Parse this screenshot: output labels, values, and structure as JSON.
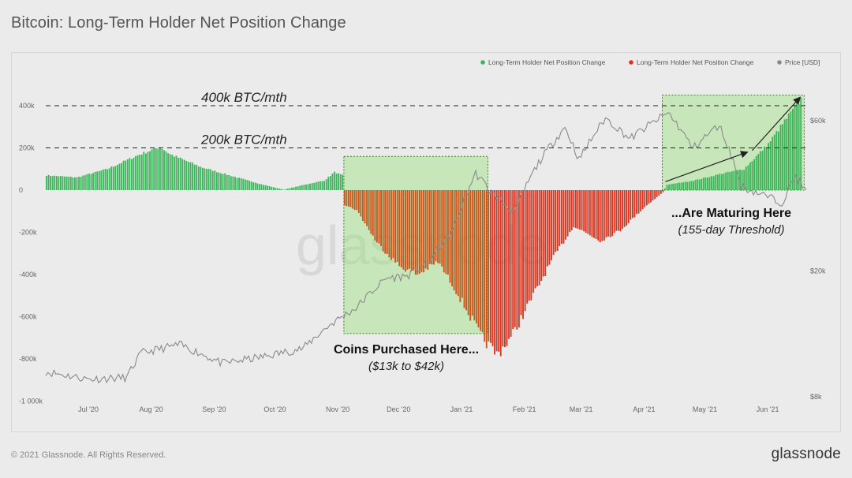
{
  "page": {
    "title": "Bitcoin: Long-Term Holder Net Position Change",
    "copyright": "© 2021 Glassnode. All Rights Reserved.",
    "logo": "glassnode",
    "watermark": "glassnode"
  },
  "chart_data": {
    "type": "bar",
    "title": "Bitcoin: Long-Term Holder Net Position Change",
    "legend": {
      "placement": "top-right",
      "entries": [
        {
          "label": "Long-Term Holder Net Position Change",
          "color": "#3cb45a"
        },
        {
          "label": "Long-Term Holder Net Position Change",
          "color": "#d9341f"
        },
        {
          "label": "Price [USD]",
          "color": "#888888"
        }
      ]
    },
    "colors": {
      "positive": "#3cb45a",
      "negative": "#d9341f",
      "negative_in_box": "#c8561c",
      "price": "#8a8a8a",
      "box_fill": "#9be07f",
      "box_stroke": "#3f7a33"
    },
    "x_axis": {
      "start": "2020-06-10",
      "end": "2021-06-20",
      "tick_labels": [
        "Jul '20",
        "Aug '20",
        "Sep '20",
        "Oct '20",
        "Nov '20",
        "Dec '20",
        "Jan '21",
        "Feb '21",
        "Mar '21",
        "Apr '21",
        "May '21",
        "Jun '21"
      ]
    },
    "y_left": {
      "min": -1000000,
      "max": 450000,
      "tick_values": [
        400000,
        200000,
        0,
        -200000,
        -400000,
        -600000,
        -800000,
        -1000000
      ],
      "tick_labels": [
        "400k",
        "200k",
        "0",
        "-200k",
        "-400k",
        "-600k",
        "-800k",
        "-1 000k"
      ]
    },
    "y_right": {
      "scale": "log",
      "min": 8000,
      "max": 68000,
      "tick_values": [
        60000,
        20000,
        8000
      ],
      "tick_labels": [
        "$60k",
        "$20k",
        "$8k"
      ]
    },
    "thresholds": [
      {
        "value": 400000,
        "label": "400k BTC/mth"
      },
      {
        "value": 200000,
        "label": "200k BTC/mth"
      }
    ],
    "net_position_anchors": [
      [
        "2020-06-10",
        70000
      ],
      [
        "2020-06-25",
        60000
      ],
      [
        "2020-07-10",
        100000
      ],
      [
        "2020-07-25",
        165000
      ],
      [
        "2020-08-05",
        205000
      ],
      [
        "2020-08-10",
        170000
      ],
      [
        "2020-08-25",
        110000
      ],
      [
        "2020-09-10",
        65000
      ],
      [
        "2020-09-25",
        25000
      ],
      [
        "2020-10-05",
        2000
      ],
      [
        "2020-10-15",
        25000
      ],
      [
        "2020-10-25",
        45000
      ],
      [
        "2020-10-30",
        85000
      ],
      [
        "2020-11-03",
        70000
      ],
      [
        "2020-11-04",
        -70000
      ],
      [
        "2020-11-10",
        -95000
      ],
      [
        "2020-11-20",
        -250000
      ],
      [
        "2020-12-01",
        -360000
      ],
      [
        "2020-12-10",
        -400000
      ],
      [
        "2020-12-20",
        -340000
      ],
      [
        "2020-12-28",
        -460000
      ],
      [
        "2021-01-05",
        -600000
      ],
      [
        "2021-01-10",
        -690000
      ],
      [
        "2021-01-18",
        -780000
      ],
      [
        "2021-01-25",
        -700000
      ],
      [
        "2021-02-05",
        -500000
      ],
      [
        "2021-02-15",
        -320000
      ],
      [
        "2021-02-25",
        -170000
      ],
      [
        "2021-03-10",
        -240000
      ],
      [
        "2021-03-20",
        -190000
      ],
      [
        "2021-04-01",
        -80000
      ],
      [
        "2021-04-10",
        -10000
      ],
      [
        "2021-04-12",
        25000
      ],
      [
        "2021-04-25",
        45000
      ],
      [
        "2021-05-10",
        80000
      ],
      [
        "2021-05-20",
        100000
      ],
      [
        "2021-06-01",
        220000
      ],
      [
        "2021-06-10",
        340000
      ],
      [
        "2021-06-17",
        430000
      ]
    ],
    "price_anchors": [
      [
        "2020-06-10",
        9600
      ],
      [
        "2020-07-01",
        9100
      ],
      [
        "2020-07-20",
        9200
      ],
      [
        "2020-07-27",
        11000
      ],
      [
        "2020-08-15",
        11700
      ],
      [
        "2020-09-05",
        10200
      ],
      [
        "2020-09-25",
        10700
      ],
      [
        "2020-10-15",
        11400
      ],
      [
        "2020-10-28",
        13500
      ],
      [
        "2020-11-10",
        15300
      ],
      [
        "2020-11-25",
        19000
      ],
      [
        "2020-12-05",
        19300
      ],
      [
        "2020-12-16",
        21300
      ],
      [
        "2020-12-28",
        27000
      ],
      [
        "2021-01-08",
        40800
      ],
      [
        "2021-01-15",
        36000
      ],
      [
        "2021-01-27",
        30500
      ],
      [
        "2021-02-08",
        44000
      ],
      [
        "2021-02-21",
        57000
      ],
      [
        "2021-02-28",
        45000
      ],
      [
        "2021-03-13",
        61000
      ],
      [
        "2021-03-25",
        52500
      ],
      [
        "2021-04-13",
        63500
      ],
      [
        "2021-04-25",
        49000
      ],
      [
        "2021-05-08",
        58000
      ],
      [
        "2021-05-19",
        37000
      ],
      [
        "2021-06-08",
        33000
      ],
      [
        "2021-06-15",
        40000
      ],
      [
        "2021-06-20",
        35500
      ]
    ],
    "annotations": [
      {
        "start": "2020-11-04",
        "end": "2021-01-14",
        "y_top": 160000,
        "y_bottom": -680000,
        "text": "Coins Purchased Here...",
        "subtext": "($13k to $42k)"
      },
      {
        "start": "2021-04-10",
        "end": "2021-06-19",
        "y_top": 450000,
        "y_bottom": 0,
        "text": "...Are Maturing Here",
        "subtext": "(155-day Threshold)"
      }
    ]
  }
}
